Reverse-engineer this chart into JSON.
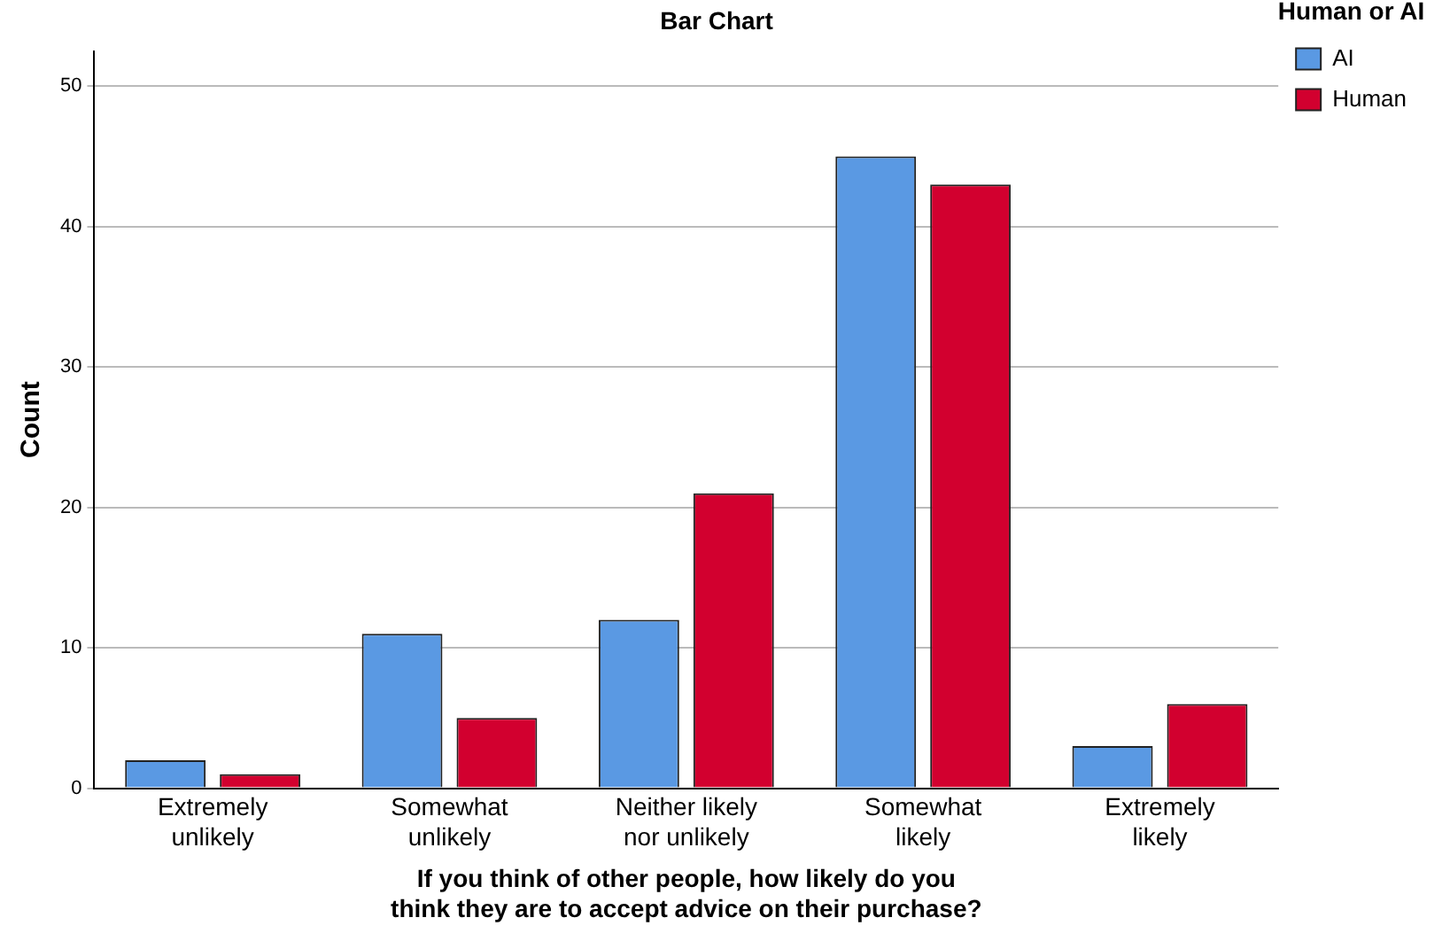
{
  "chart_data": {
    "type": "bar",
    "title": "Bar Chart",
    "xlabel": "If you think of other people, how likely do you think they are to accept advice on their purchase?",
    "ylabel": "Count",
    "legend_title": "Human or AI",
    "categories": [
      "Extremely unlikely",
      "Somewhat unlikely",
      "Neither likely nor unlikely",
      "Somewhat likely",
      "Extremely likely"
    ],
    "series": [
      {
        "name": "AI",
        "color": "#5a99e3",
        "values": [
          2,
          11,
          12,
          45,
          3
        ]
      },
      {
        "name": "Human",
        "color": "#d2002f",
        "values": [
          1,
          5,
          21,
          43,
          6
        ]
      }
    ],
    "ylim": [
      0,
      52.5
    ],
    "yticks": [
      0,
      10,
      20,
      30,
      40,
      50
    ],
    "grid": "y",
    "legend": "top right"
  }
}
